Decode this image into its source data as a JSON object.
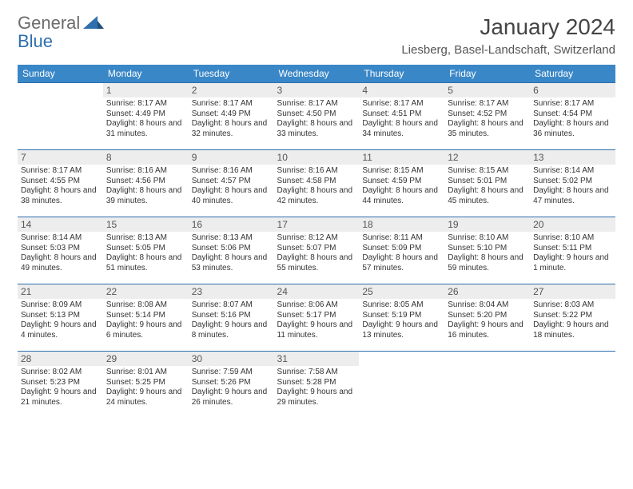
{
  "logo": {
    "part1": "General",
    "part2": "Blue"
  },
  "title": "January 2024",
  "location": "Liesberg, Basel-Landschaft, Switzerland",
  "colors": {
    "header_bg": "#3a87c7",
    "header_text": "#ffffff",
    "rule": "#2f6fad",
    "daynum_bg": "#ededed",
    "logo_gray": "#6b6b6b",
    "logo_blue": "#2f6fad"
  },
  "daynames": [
    "Sunday",
    "Monday",
    "Tuesday",
    "Wednesday",
    "Thursday",
    "Friday",
    "Saturday"
  ],
  "weeks": [
    [
      null,
      {
        "n": "1",
        "sr": "Sunrise: 8:17 AM",
        "ss": "Sunset: 4:49 PM",
        "dl": "Daylight: 8 hours and 31 minutes."
      },
      {
        "n": "2",
        "sr": "Sunrise: 8:17 AM",
        "ss": "Sunset: 4:49 PM",
        "dl": "Daylight: 8 hours and 32 minutes."
      },
      {
        "n": "3",
        "sr": "Sunrise: 8:17 AM",
        "ss": "Sunset: 4:50 PM",
        "dl": "Daylight: 8 hours and 33 minutes."
      },
      {
        "n": "4",
        "sr": "Sunrise: 8:17 AM",
        "ss": "Sunset: 4:51 PM",
        "dl": "Daylight: 8 hours and 34 minutes."
      },
      {
        "n": "5",
        "sr": "Sunrise: 8:17 AM",
        "ss": "Sunset: 4:52 PM",
        "dl": "Daylight: 8 hours and 35 minutes."
      },
      {
        "n": "6",
        "sr": "Sunrise: 8:17 AM",
        "ss": "Sunset: 4:54 PM",
        "dl": "Daylight: 8 hours and 36 minutes."
      }
    ],
    [
      {
        "n": "7",
        "sr": "Sunrise: 8:17 AM",
        "ss": "Sunset: 4:55 PM",
        "dl": "Daylight: 8 hours and 38 minutes."
      },
      {
        "n": "8",
        "sr": "Sunrise: 8:16 AM",
        "ss": "Sunset: 4:56 PM",
        "dl": "Daylight: 8 hours and 39 minutes."
      },
      {
        "n": "9",
        "sr": "Sunrise: 8:16 AM",
        "ss": "Sunset: 4:57 PM",
        "dl": "Daylight: 8 hours and 40 minutes."
      },
      {
        "n": "10",
        "sr": "Sunrise: 8:16 AM",
        "ss": "Sunset: 4:58 PM",
        "dl": "Daylight: 8 hours and 42 minutes."
      },
      {
        "n": "11",
        "sr": "Sunrise: 8:15 AM",
        "ss": "Sunset: 4:59 PM",
        "dl": "Daylight: 8 hours and 44 minutes."
      },
      {
        "n": "12",
        "sr": "Sunrise: 8:15 AM",
        "ss": "Sunset: 5:01 PM",
        "dl": "Daylight: 8 hours and 45 minutes."
      },
      {
        "n": "13",
        "sr": "Sunrise: 8:14 AM",
        "ss": "Sunset: 5:02 PM",
        "dl": "Daylight: 8 hours and 47 minutes."
      }
    ],
    [
      {
        "n": "14",
        "sr": "Sunrise: 8:14 AM",
        "ss": "Sunset: 5:03 PM",
        "dl": "Daylight: 8 hours and 49 minutes."
      },
      {
        "n": "15",
        "sr": "Sunrise: 8:13 AM",
        "ss": "Sunset: 5:05 PM",
        "dl": "Daylight: 8 hours and 51 minutes."
      },
      {
        "n": "16",
        "sr": "Sunrise: 8:13 AM",
        "ss": "Sunset: 5:06 PM",
        "dl": "Daylight: 8 hours and 53 minutes."
      },
      {
        "n": "17",
        "sr": "Sunrise: 8:12 AM",
        "ss": "Sunset: 5:07 PM",
        "dl": "Daylight: 8 hours and 55 minutes."
      },
      {
        "n": "18",
        "sr": "Sunrise: 8:11 AM",
        "ss": "Sunset: 5:09 PM",
        "dl": "Daylight: 8 hours and 57 minutes."
      },
      {
        "n": "19",
        "sr": "Sunrise: 8:10 AM",
        "ss": "Sunset: 5:10 PM",
        "dl": "Daylight: 8 hours and 59 minutes."
      },
      {
        "n": "20",
        "sr": "Sunrise: 8:10 AM",
        "ss": "Sunset: 5:11 PM",
        "dl": "Daylight: 9 hours and 1 minute."
      }
    ],
    [
      {
        "n": "21",
        "sr": "Sunrise: 8:09 AM",
        "ss": "Sunset: 5:13 PM",
        "dl": "Daylight: 9 hours and 4 minutes."
      },
      {
        "n": "22",
        "sr": "Sunrise: 8:08 AM",
        "ss": "Sunset: 5:14 PM",
        "dl": "Daylight: 9 hours and 6 minutes."
      },
      {
        "n": "23",
        "sr": "Sunrise: 8:07 AM",
        "ss": "Sunset: 5:16 PM",
        "dl": "Daylight: 9 hours and 8 minutes."
      },
      {
        "n": "24",
        "sr": "Sunrise: 8:06 AM",
        "ss": "Sunset: 5:17 PM",
        "dl": "Daylight: 9 hours and 11 minutes."
      },
      {
        "n": "25",
        "sr": "Sunrise: 8:05 AM",
        "ss": "Sunset: 5:19 PM",
        "dl": "Daylight: 9 hours and 13 minutes."
      },
      {
        "n": "26",
        "sr": "Sunrise: 8:04 AM",
        "ss": "Sunset: 5:20 PM",
        "dl": "Daylight: 9 hours and 16 minutes."
      },
      {
        "n": "27",
        "sr": "Sunrise: 8:03 AM",
        "ss": "Sunset: 5:22 PM",
        "dl": "Daylight: 9 hours and 18 minutes."
      }
    ],
    [
      {
        "n": "28",
        "sr": "Sunrise: 8:02 AM",
        "ss": "Sunset: 5:23 PM",
        "dl": "Daylight: 9 hours and 21 minutes."
      },
      {
        "n": "29",
        "sr": "Sunrise: 8:01 AM",
        "ss": "Sunset: 5:25 PM",
        "dl": "Daylight: 9 hours and 24 minutes."
      },
      {
        "n": "30",
        "sr": "Sunrise: 7:59 AM",
        "ss": "Sunset: 5:26 PM",
        "dl": "Daylight: 9 hours and 26 minutes."
      },
      {
        "n": "31",
        "sr": "Sunrise: 7:58 AM",
        "ss": "Sunset: 5:28 PM",
        "dl": "Daylight: 9 hours and 29 minutes."
      },
      null,
      null,
      null
    ]
  ]
}
